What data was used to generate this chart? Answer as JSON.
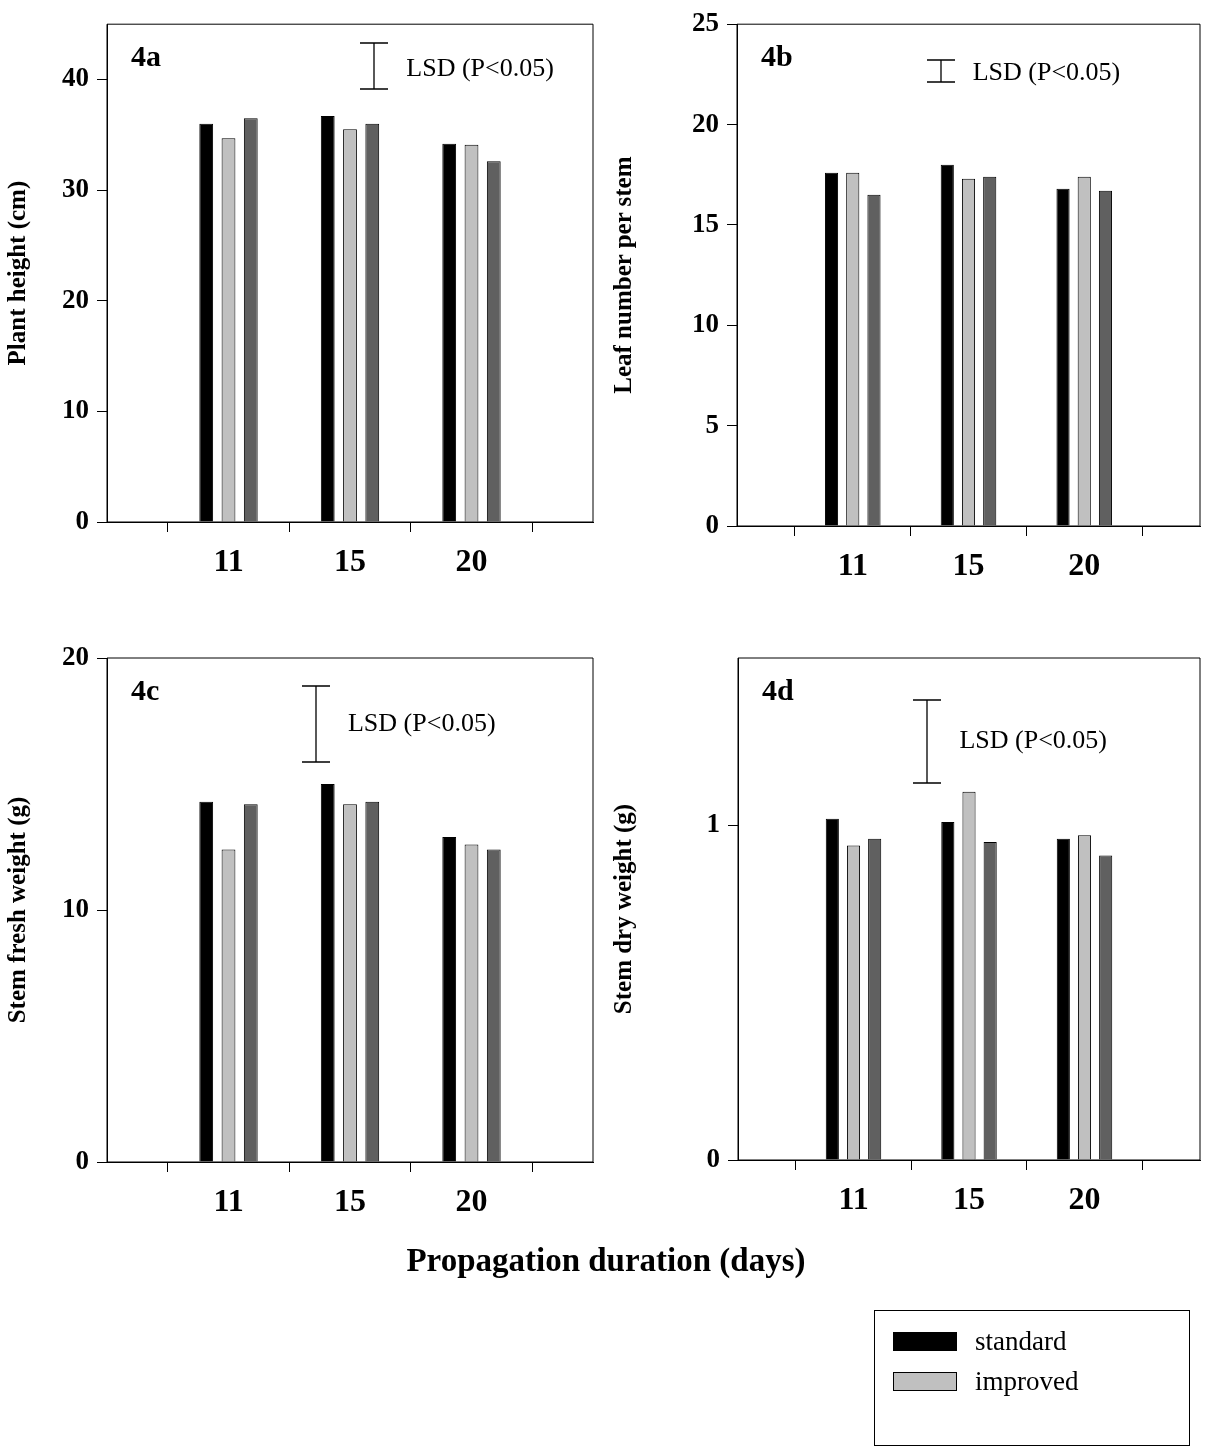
{
  "chart_data": [
    {
      "type": "bar",
      "title": "4a",
      "ylabel": "Plant height (cm)",
      "categories": [
        "11",
        "15",
        "20"
      ],
      "ylim": [
        0,
        45
      ],
      "yticks": [
        0,
        10,
        20,
        30,
        40
      ],
      "grid": false,
      "legend": "bottom right",
      "annotations": [
        "LSD (P<0.05)"
      ],
      "series": [
        {
          "name": "standard",
          "color": "#000000",
          "values": [
            36.0,
            36.7,
            34.2
          ]
        },
        {
          "name": "improved",
          "color": "#c0c0c0",
          "values": [
            34.7,
            35.5,
            34.1
          ]
        },
        {
          "color": "#606060",
          "values": [
            36.5,
            36.0,
            32.6
          ]
        }
      ]
    },
    {
      "type": "bar",
      "title": "4b",
      "ylabel": "Leaf number per stem",
      "categories": [
        "11",
        "15",
        "20"
      ],
      "ylim": [
        0,
        25
      ],
      "yticks": [
        0,
        5,
        10,
        15,
        20,
        25
      ],
      "grid": false,
      "annotations": [
        "LSD (P<0.05)"
      ],
      "series": [
        {
          "color": "#000000",
          "values": [
            17.6,
            18.0,
            16.8
          ]
        },
        {
          "color": "#c0c0c0",
          "values": [
            17.6,
            17.3,
            17.4
          ]
        },
        {
          "color": "#606060",
          "values": [
            16.5,
            17.4,
            16.7
          ]
        }
      ]
    },
    {
      "type": "bar",
      "title": "4c",
      "ylabel": "Stem fresh weight (g)",
      "xlabel": "Propagation duration (days)",
      "categories": [
        "11",
        "15",
        "20"
      ],
      "ylim": [
        0,
        20
      ],
      "yticks": [
        0,
        10,
        20
      ],
      "grid": false,
      "annotations": [
        "LSD (P<0.05)"
      ],
      "series": [
        {
          "color": "#000000",
          "values": [
            14.3,
            15.0,
            12.9
          ]
        },
        {
          "color": "#c0c0c0",
          "values": [
            12.4,
            14.2,
            12.6
          ]
        },
        {
          "color": "#606060",
          "values": [
            14.2,
            14.3,
            12.4
          ]
        }
      ]
    },
    {
      "type": "bar",
      "title": "4d",
      "ylabel": "Stem dry weight (g)",
      "categories": [
        "11",
        "15",
        "20"
      ],
      "ylim": [
        0,
        1.5
      ],
      "yticks": [
        0,
        1
      ],
      "grid": false,
      "annotations": [
        "LSD (P<0.05)"
      ],
      "series": [
        {
          "color": "#000000",
          "values": [
            1.02,
            1.01,
            0.96
          ]
        },
        {
          "color": "#c0c0c0",
          "values": [
            0.94,
            1.1,
            0.97
          ]
        },
        {
          "color": "#606060",
          "values": [
            0.96,
            0.95,
            0.91
          ]
        }
      ]
    }
  ]
}
